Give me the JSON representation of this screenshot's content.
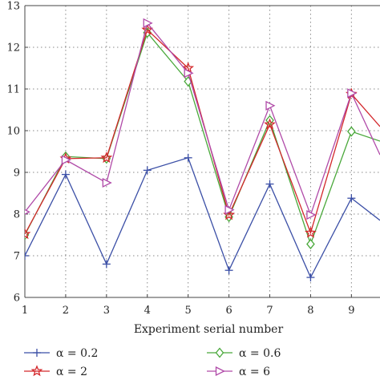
{
  "chart_data": {
    "type": "line",
    "xlabel": "Experiment serial number",
    "ylabel": "",
    "title": "",
    "xlim": [
      1,
      9.7
    ],
    "ylim": [
      6,
      13
    ],
    "x_ticks": [
      1,
      2,
      3,
      4,
      5,
      6,
      7,
      8,
      9
    ],
    "y_ticks": [
      6,
      7,
      8,
      9,
      10,
      11,
      12,
      13
    ],
    "grid": true,
    "legend_position": "bottom",
    "x": [
      1,
      2,
      3,
      4,
      5,
      6,
      7,
      8,
      9,
      9.7
    ],
    "series": [
      {
        "name": "α = 0.2",
        "color": "#3b4fa6",
        "marker": "plus",
        "values": [
          7.0,
          8.95,
          6.8,
          9.05,
          9.35,
          6.65,
          8.72,
          6.48,
          8.38,
          7.85
        ]
      },
      {
        "name": "α = 0.6",
        "color": "#49a83a",
        "marker": "diamond",
        "values": [
          7.5,
          9.38,
          9.33,
          12.35,
          11.18,
          7.93,
          10.25,
          7.28,
          9.98,
          9.75
        ]
      },
      {
        "name": "α = 2",
        "color": "#d3272b",
        "marker": "star",
        "values": [
          7.52,
          9.33,
          9.35,
          12.42,
          11.5,
          7.98,
          10.15,
          7.55,
          10.88,
          10.1
        ]
      },
      {
        "name": "α = 6",
        "color": "#b04aa8",
        "marker": "triangle",
        "values": [
          8.05,
          9.3,
          8.75,
          12.58,
          11.38,
          8.1,
          10.6,
          7.98,
          10.9,
          9.42
        ]
      }
    ]
  }
}
